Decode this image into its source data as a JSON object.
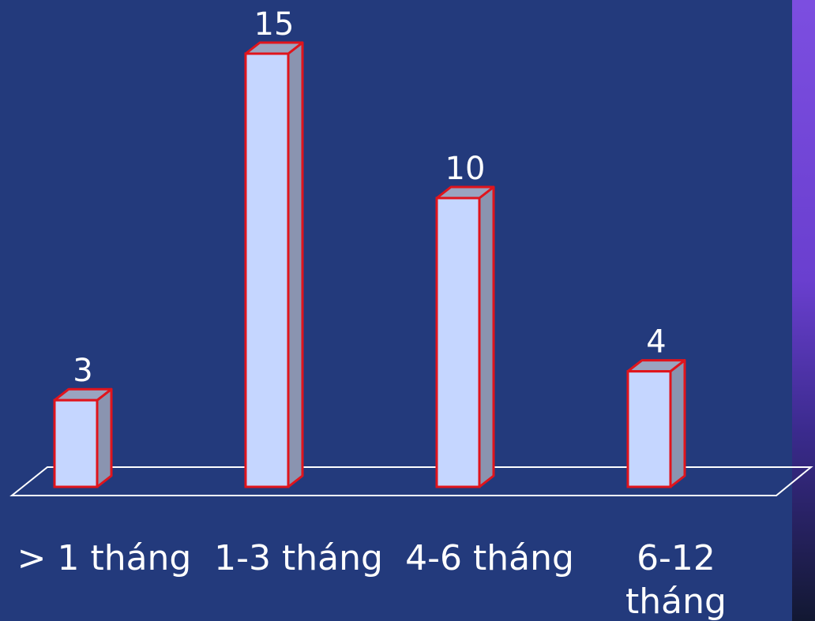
{
  "chart_data": {
    "type": "bar",
    "categories": [
      "> 1 tháng",
      "1-3 tháng",
      "4-6 tháng",
      "6-12 tháng"
    ],
    "category_lines": [
      [
        "> 1 tháng"
      ],
      [
        "1-3 tháng"
      ],
      [
        "4-6 tháng"
      ],
      [
        "6-12",
        "tháng"
      ]
    ],
    "values": [
      3,
      15,
      10,
      4
    ],
    "data_labels": [
      "3",
      "15",
      "10",
      "4"
    ],
    "title": "",
    "xlabel": "",
    "ylabel": "",
    "ylim": [
      0,
      15
    ],
    "grid": false,
    "legend": "none",
    "three_d": true
  },
  "colors": {
    "background": "#233a7c",
    "bar_front": "#c5d6ff",
    "bar_side": "#8a94b0",
    "bar_top": "#9aa4c0",
    "bar_outline": "#e0141c",
    "floor_outline": "#ffffff",
    "text": "#ffffff",
    "side_strip_top": "#7c4ee0",
    "side_strip_bottom": "#121832"
  }
}
